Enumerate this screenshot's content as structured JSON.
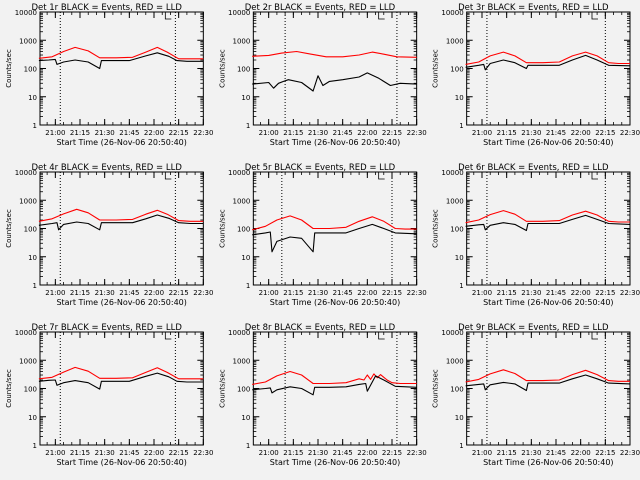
{
  "colors": {
    "background": "#f2f2f2",
    "events": "#000000",
    "lld": "#ff0000",
    "axis": "#000000"
  },
  "chart_data": [
    {
      "type": "line",
      "title": "Det 1r BLACK = Events, RED = LLD",
      "ylabel": "Counts/sec",
      "xlabel": "Start Time (26-Nov-06 20:50:40)",
      "scale": "log",
      "ylim": [
        1,
        10000
      ],
      "xlim": [
        "20:50:40",
        "22:30:00"
      ],
      "y_ticks": [
        "10000",
        "1000",
        "100",
        "10",
        "1"
      ],
      "x_ticks": [
        "21:00",
        "21:15",
        "21:30",
        "21:45",
        "22:00",
        "22:15",
        "22:30"
      ],
      "vlines": [
        "21:03",
        "22:13"
      ],
      "grid": false,
      "series": [
        {
          "name": "RED",
          "color": "#ff0000",
          "x": [
            "20:50",
            "20:58",
            "21:05",
            "21:12",
            "21:20",
            "21:27",
            "21:37",
            "21:47",
            "21:55",
            "22:02",
            "22:08",
            "22:15",
            "22:22",
            "22:30"
          ],
          "y": [
            230,
            260,
            400,
            560,
            420,
            240,
            240,
            250,
            380,
            560,
            380,
            220,
            220,
            220
          ]
        },
        {
          "name": "BLACK",
          "color": "#000000",
          "x": [
            "20:50",
            "20:56",
            "21:00",
            "21:01",
            "21:05",
            "21:12",
            "21:20",
            "21:27",
            "21:28",
            "21:32",
            "21:45",
            "21:55",
            "22:02",
            "22:09",
            "22:14",
            "22:20",
            "22:30"
          ],
          "y": [
            190,
            200,
            210,
            140,
            170,
            200,
            170,
            100,
            190,
            190,
            190,
            280,
            360,
            270,
            190,
            180,
            180
          ]
        }
      ]
    },
    {
      "type": "line",
      "title": "Det 2r BLACK = Events, RED = LLD",
      "ylabel": "Counts/sec",
      "xlabel": "Start Time (26-Nov-06 20:50:40)",
      "scale": "log",
      "ylim": [
        1,
        10000
      ],
      "xlim": [
        "20:50:40",
        "22:30:00"
      ],
      "y_ticks": [
        "10000",
        "1000",
        "100",
        "10",
        "1"
      ],
      "x_ticks": [
        "21:00",
        "21:15",
        "21:30",
        "21:45",
        "22:00",
        "22:15",
        "22:30"
      ],
      "vlines": [
        "21:10",
        "22:18"
      ],
      "grid": false,
      "series": [
        {
          "name": "RED",
          "color": "#ff0000",
          "x": [
            "20:50",
            "21:00",
            "21:08",
            "21:17",
            "21:25",
            "21:35",
            "21:45",
            "21:55",
            "22:03",
            "22:10",
            "22:18",
            "22:30"
          ],
          "y": [
            270,
            290,
            350,
            400,
            330,
            260,
            260,
            300,
            380,
            320,
            260,
            250
          ]
        },
        {
          "name": "BLACK",
          "color": "#000000",
          "x": [
            "20:50",
            "21:00",
            "21:03",
            "21:06",
            "21:09",
            "21:12",
            "21:20",
            "21:27",
            "21:30",
            "21:33",
            "21:37",
            "21:45",
            "21:55",
            "22:00",
            "22:07",
            "22:14",
            "22:20",
            "22:30"
          ],
          "y": [
            28,
            32,
            20,
            30,
            35,
            40,
            32,
            16,
            55,
            25,
            35,
            40,
            50,
            70,
            45,
            25,
            30,
            28
          ]
        }
      ]
    },
    {
      "type": "line",
      "title": "Det 3r BLACK = Events, RED = LLD",
      "ylabel": "Counts/sec",
      "xlabel": "Start Time (26-Nov-06 20:50:40)",
      "scale": "log",
      "ylim": [
        1,
        10000
      ],
      "xlim": [
        "20:50:40",
        "22:30:00"
      ],
      "y_ticks": [
        "10000",
        "1000",
        "100",
        "10",
        "1"
      ],
      "x_ticks": [
        "21:00",
        "21:15",
        "21:30",
        "21:45",
        "22:00",
        "22:15",
        "22:30"
      ],
      "vlines": [
        "21:03",
        "22:15"
      ],
      "grid": false,
      "series": [
        {
          "name": "RED",
          "color": "#ff0000",
          "x": [
            "20:50",
            "20:58",
            "21:05",
            "21:13",
            "21:20",
            "21:27",
            "21:37",
            "21:47",
            "21:55",
            "22:03",
            "22:10",
            "22:17",
            "22:23",
            "22:30"
          ],
          "y": [
            140,
            170,
            280,
            380,
            280,
            160,
            160,
            170,
            280,
            380,
            280,
            160,
            150,
            150
          ]
        },
        {
          "name": "BLACK",
          "color": "#000000",
          "x": [
            "20:50",
            "20:58",
            "21:01",
            "21:02",
            "21:05",
            "21:13",
            "21:20",
            "21:27",
            "21:28",
            "21:37",
            "21:47",
            "21:55",
            "22:03",
            "22:10",
            "22:17",
            "22:30"
          ],
          "y": [
            110,
            130,
            140,
            90,
            150,
            200,
            160,
            100,
            130,
            130,
            130,
            200,
            290,
            200,
            130,
            125
          ]
        }
      ]
    },
    {
      "type": "line",
      "title": "Det 4r BLACK = Events, RED = LLD",
      "ylabel": "Counts/sec",
      "xlabel": "Start Time (26-Nov-06 20:50:40)",
      "scale": "log",
      "ylim": [
        1,
        10000
      ],
      "xlim": [
        "20:50:40",
        "22:30:00"
      ],
      "y_ticks": [
        "10000",
        "1000",
        "100",
        "10",
        "1"
      ],
      "x_ticks": [
        "21:00",
        "21:15",
        "21:30",
        "21:45",
        "22:00",
        "22:15",
        "22:30"
      ],
      "vlines": [
        "21:03",
        "22:13"
      ],
      "grid": false,
      "series": [
        {
          "name": "RED",
          "color": "#ff0000",
          "x": [
            "20:50",
            "20:58",
            "21:05",
            "21:13",
            "21:20",
            "21:27",
            "21:37",
            "21:47",
            "21:55",
            "22:02",
            "22:08",
            "22:15",
            "22:22",
            "22:30"
          ],
          "y": [
            180,
            220,
            330,
            480,
            360,
            200,
            200,
            210,
            320,
            440,
            320,
            190,
            180,
            180
          ]
        },
        {
          "name": "BLACK",
          "color": "#000000",
          "x": [
            "20:50",
            "20:58",
            "21:01",
            "21:02",
            "21:05",
            "21:13",
            "21:20",
            "21:27",
            "21:28",
            "21:37",
            "21:47",
            "21:55",
            "22:02",
            "22:09",
            "22:15",
            "22:22",
            "22:30"
          ],
          "y": [
            130,
            150,
            160,
            90,
            140,
            170,
            150,
            90,
            160,
            160,
            160,
            220,
            300,
            230,
            160,
            150,
            150
          ]
        }
      ]
    },
    {
      "type": "line",
      "title": "Det 5r BLACK = Events, RED = LLD",
      "ylabel": "Counts/sec",
      "xlabel": "Start Time (26-Nov-06 20:50:40)",
      "scale": "log",
      "ylim": [
        1,
        10000
      ],
      "xlim": [
        "20:50:40",
        "22:30:00"
      ],
      "y_ticks": [
        "10000",
        "1000",
        "100",
        "10",
        "1"
      ],
      "x_ticks": [
        "21:00",
        "21:15",
        "21:30",
        "21:45",
        "22:00",
        "22:15",
        "22:30"
      ],
      "vlines": [
        "21:08",
        "22:15"
      ],
      "grid": false,
      "series": [
        {
          "name": "RED",
          "color": "#ff0000",
          "x": [
            "20:50",
            "20:58",
            "21:05",
            "21:13",
            "21:20",
            "21:27",
            "21:37",
            "21:47",
            "21:55",
            "22:03",
            "22:10",
            "22:17",
            "22:23",
            "22:30"
          ],
          "y": [
            90,
            120,
            200,
            280,
            200,
            100,
            100,
            110,
            180,
            260,
            180,
            100,
            95,
            95
          ]
        },
        {
          "name": "BLACK",
          "color": "#000000",
          "x": [
            "20:50",
            "20:58",
            "21:01",
            "21:02",
            "21:05",
            "21:13",
            "21:20",
            "21:27",
            "21:28",
            "21:37",
            "21:47",
            "21:55",
            "22:03",
            "22:10",
            "22:17",
            "22:30"
          ],
          "y": [
            60,
            70,
            75,
            15,
            35,
            50,
            45,
            15,
            70,
            70,
            70,
            100,
            140,
            100,
            70,
            65
          ]
        }
      ]
    },
    {
      "type": "line",
      "title": "Det 6r BLACK = Events, RED = LLD",
      "ylabel": "Counts/sec",
      "xlabel": "Start Time (26-Nov-06 20:50:40)",
      "scale": "log",
      "ylim": [
        1,
        10000
      ],
      "xlim": [
        "20:50:40",
        "22:30:00"
      ],
      "y_ticks": [
        "10000",
        "1000",
        "100",
        "10",
        "1"
      ],
      "x_ticks": [
        "21:00",
        "21:15",
        "21:30",
        "21:45",
        "22:00",
        "22:15",
        "22:30"
      ],
      "vlines": [
        "21:03",
        "22:15"
      ],
      "grid": false,
      "series": [
        {
          "name": "RED",
          "color": "#ff0000",
          "x": [
            "20:50",
            "20:58",
            "21:05",
            "21:13",
            "21:20",
            "21:27",
            "21:37",
            "21:47",
            "21:55",
            "22:03",
            "22:10",
            "22:17",
            "22:23",
            "22:30"
          ],
          "y": [
            160,
            200,
            310,
            430,
            320,
            180,
            180,
            190,
            300,
            410,
            300,
            180,
            170,
            170
          ]
        },
        {
          "name": "BLACK",
          "color": "#000000",
          "x": [
            "20:50",
            "20:58",
            "21:01",
            "21:02",
            "21:05",
            "21:13",
            "21:20",
            "21:27",
            "21:28",
            "21:37",
            "21:47",
            "21:55",
            "22:03",
            "22:10",
            "22:17",
            "22:30"
          ],
          "y": [
            120,
            135,
            140,
            90,
            130,
            160,
            140,
            85,
            150,
            150,
            150,
            210,
            290,
            210,
            150,
            140
          ]
        }
      ]
    },
    {
      "type": "line",
      "title": "Det 7r BLACK = Events, RED = LLD",
      "ylabel": "Counts/sec",
      "xlabel": "Start Time (26-Nov-06 20:50:40)",
      "scale": "log",
      "ylim": [
        1,
        10000
      ],
      "xlim": [
        "20:50:40",
        "22:30:00"
      ],
      "y_ticks": [
        "10000",
        "1000",
        "100",
        "10",
        "1"
      ],
      "x_ticks": [
        "21:00",
        "21:15",
        "21:30",
        "21:45",
        "22:00",
        "22:15",
        "22:30"
      ],
      "vlines": [
        "21:03",
        "22:13"
      ],
      "grid": false,
      "series": [
        {
          "name": "RED",
          "color": "#ff0000",
          "x": [
            "20:50",
            "20:58",
            "21:05",
            "21:12",
            "21:20",
            "21:27",
            "21:37",
            "21:47",
            "21:55",
            "22:02",
            "22:08",
            "22:15",
            "22:22",
            "22:30"
          ],
          "y": [
            220,
            250,
            380,
            560,
            410,
            230,
            230,
            240,
            370,
            540,
            370,
            220,
            220,
            220
          ]
        },
        {
          "name": "BLACK",
          "color": "#000000",
          "x": [
            "20:50",
            "20:56",
            "21:00",
            "21:01",
            "21:05",
            "21:12",
            "21:20",
            "21:27",
            "21:28",
            "21:32",
            "21:45",
            "21:55",
            "22:02",
            "22:09",
            "22:14",
            "22:20",
            "22:30"
          ],
          "y": [
            180,
            195,
            200,
            130,
            160,
            190,
            160,
            95,
            180,
            180,
            180,
            270,
            350,
            260,
            180,
            170,
            170
          ]
        }
      ]
    },
    {
      "type": "line",
      "title": "Det 8r BLACK = Events, RED = LLD",
      "ylabel": "Counts/sec",
      "xlabel": "Start Time (26-Nov-06 20:50:40)",
      "scale": "log",
      "ylim": [
        1,
        10000
      ],
      "xlim": [
        "20:50:40",
        "22:30:00"
      ],
      "y_ticks": [
        "10000",
        "1000",
        "100",
        "10",
        "1"
      ],
      "x_ticks": [
        "21:00",
        "21:15",
        "21:30",
        "21:45",
        "22:00",
        "22:15",
        "22:30"
      ],
      "vlines": [
        "21:10",
        "22:18"
      ],
      "grid": false,
      "series": [
        {
          "name": "RED",
          "color": "#ff0000",
          "x": [
            "20:50",
            "20:58",
            "21:05",
            "21:13",
            "21:20",
            "21:27",
            "21:37",
            "21:47",
            "21:55",
            "21:58",
            "22:00",
            "22:02",
            "22:04",
            "22:06",
            "22:08",
            "22:10",
            "22:12",
            "22:15",
            "22:20",
            "22:30"
          ],
          "y": [
            140,
            170,
            280,
            400,
            300,
            150,
            150,
            160,
            220,
            200,
            300,
            210,
            330,
            240,
            310,
            250,
            200,
            160,
            150,
            150
          ]
        },
        {
          "name": "BLACK",
          "color": "#000000",
          "x": [
            "20:50",
            "20:58",
            "21:01",
            "21:02",
            "21:05",
            "21:13",
            "21:20",
            "21:27",
            "21:28",
            "21:37",
            "21:47",
            "21:55",
            "21:59",
            "22:00",
            "22:05",
            "22:10",
            "22:17",
            "22:30"
          ],
          "y": [
            90,
            100,
            105,
            70,
            90,
            115,
            100,
            60,
            110,
            110,
            115,
            140,
            150,
            80,
            280,
            200,
            120,
            110
          ]
        }
      ]
    },
    {
      "type": "line",
      "title": "Det 9r BLACK = Events, RED = LLD",
      "ylabel": "Counts/sec",
      "xlabel": "Start Time (26-Nov-06 20:50:40)",
      "scale": "log",
      "ylim": [
        1,
        10000
      ],
      "xlim": [
        "20:50:40",
        "22:30:00"
      ],
      "y_ticks": [
        "10000",
        "1000",
        "100",
        "10",
        "1"
      ],
      "x_ticks": [
        "21:00",
        "21:15",
        "21:30",
        "21:45",
        "22:00",
        "22:15",
        "22:30"
      ],
      "vlines": [
        "21:03",
        "22:15"
      ],
      "grid": false,
      "series": [
        {
          "name": "RED",
          "color": "#ff0000",
          "x": [
            "20:50",
            "20:58",
            "21:05",
            "21:13",
            "21:20",
            "21:27",
            "21:37",
            "21:47",
            "21:55",
            "22:03",
            "22:10",
            "22:17",
            "22:23",
            "22:30"
          ],
          "y": [
            170,
            210,
            330,
            460,
            340,
            190,
            190,
            200,
            310,
            440,
            310,
            190,
            180,
            180
          ]
        },
        {
          "name": "BLACK",
          "color": "#000000",
          "x": [
            "20:50",
            "20:58",
            "21:01",
            "21:02",
            "21:05",
            "21:13",
            "21:20",
            "21:27",
            "21:28",
            "21:37",
            "21:47",
            "21:55",
            "22:03",
            "22:10",
            "22:17",
            "22:30"
          ],
          "y": [
            125,
            140,
            145,
            90,
            135,
            165,
            145,
            85,
            155,
            155,
            155,
            220,
            300,
            220,
            155,
            145
          ]
        }
      ]
    }
  ]
}
